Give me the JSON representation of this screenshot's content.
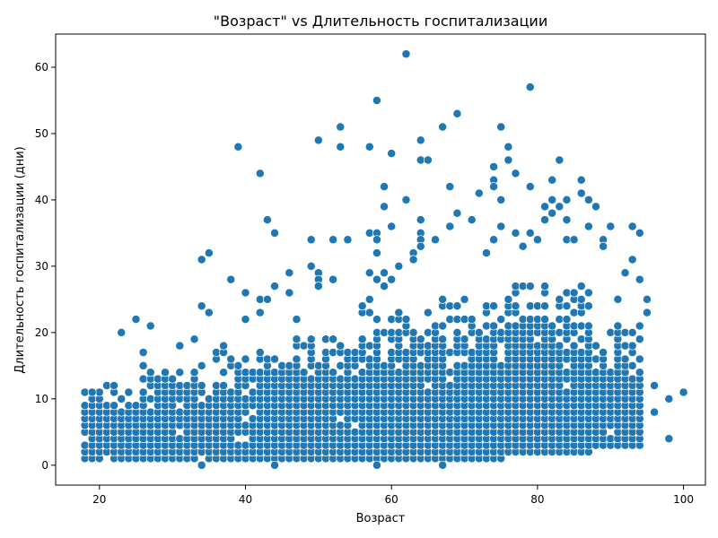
{
  "chart_data": {
    "type": "scatter",
    "title": "\"Возраст\" vs Длительность госпитализации",
    "xlabel": "Возраст",
    "ylabel": "Длительность госпитализации (дни)",
    "xlim": [
      14,
      103
    ],
    "ylim": [
      -3,
      65
    ],
    "x_ticks": [
      20,
      40,
      60,
      80,
      100
    ],
    "y_ticks": [
      0,
      10,
      20,
      30,
      40,
      50,
      60
    ],
    "grid": false,
    "legend": "none",
    "marker_color": "#1f77b4",
    "outliers": [
      {
        "x": 18,
        "y": 11
      },
      {
        "x": 19,
        "y": 11
      },
      {
        "x": 23,
        "y": 20
      },
      {
        "x": 25,
        "y": 22
      },
      {
        "x": 26,
        "y": 17
      },
      {
        "x": 27,
        "y": 21
      },
      {
        "x": 31,
        "y": 18
      },
      {
        "x": 33,
        "y": 19
      },
      {
        "x": 34,
        "y": 31
      },
      {
        "x": 34,
        "y": 24
      },
      {
        "x": 35,
        "y": 32
      },
      {
        "x": 35,
        "y": 23
      },
      {
        "x": 37,
        "y": 18
      },
      {
        "x": 38,
        "y": 28
      },
      {
        "x": 39,
        "y": 48
      },
      {
        "x": 40,
        "y": 26
      },
      {
        "x": 40,
        "y": 22
      },
      {
        "x": 42,
        "y": 44
      },
      {
        "x": 42,
        "y": 25
      },
      {
        "x": 42,
        "y": 23
      },
      {
        "x": 43,
        "y": 37
      },
      {
        "x": 43,
        "y": 25
      },
      {
        "x": 44,
        "y": 35
      },
      {
        "x": 44,
        "y": 27
      },
      {
        "x": 46,
        "y": 29
      },
      {
        "x": 46,
        "y": 26
      },
      {
        "x": 47,
        "y": 22
      },
      {
        "x": 49,
        "y": 34
      },
      {
        "x": 49,
        "y": 30
      },
      {
        "x": 50,
        "y": 49
      },
      {
        "x": 50,
        "y": 29
      },
      {
        "x": 50,
        "y": 28
      },
      {
        "x": 50,
        "y": 27
      },
      {
        "x": 52,
        "y": 34
      },
      {
        "x": 52,
        "y": 28
      },
      {
        "x": 53,
        "y": 51
      },
      {
        "x": 53,
        "y": 48
      },
      {
        "x": 54,
        "y": 34
      },
      {
        "x": 56,
        "y": 24
      },
      {
        "x": 57,
        "y": 48
      },
      {
        "x": 57,
        "y": 35
      },
      {
        "x": 57,
        "y": 29
      },
      {
        "x": 57,
        "y": 25
      },
      {
        "x": 58,
        "y": 55
      },
      {
        "x": 58,
        "y": 35
      },
      {
        "x": 58,
        "y": 34
      },
      {
        "x": 58,
        "y": 32
      },
      {
        "x": 58,
        "y": 28
      },
      {
        "x": 59,
        "y": 42
      },
      {
        "x": 59,
        "y": 39
      },
      {
        "x": 59,
        "y": 29
      },
      {
        "x": 59,
        "y": 27
      },
      {
        "x": 60,
        "y": 47
      },
      {
        "x": 60,
        "y": 36
      },
      {
        "x": 60,
        "y": 28
      },
      {
        "x": 61,
        "y": 30
      },
      {
        "x": 62,
        "y": 62
      },
      {
        "x": 62,
        "y": 40
      },
      {
        "x": 63,
        "y": 32
      },
      {
        "x": 63,
        "y": 31
      },
      {
        "x": 64,
        "y": 49
      },
      {
        "x": 64,
        "y": 46
      },
      {
        "x": 64,
        "y": 37
      },
      {
        "x": 64,
        "y": 35
      },
      {
        "x": 64,
        "y": 34
      },
      {
        "x": 64,
        "y": 33
      },
      {
        "x": 65,
        "y": 46
      },
      {
        "x": 66,
        "y": 34
      },
      {
        "x": 67,
        "y": 51
      },
      {
        "x": 68,
        "y": 42
      },
      {
        "x": 68,
        "y": 36
      },
      {
        "x": 69,
        "y": 53
      },
      {
        "x": 69,
        "y": 38
      },
      {
        "x": 71,
        "y": 37
      },
      {
        "x": 72,
        "y": 41
      },
      {
        "x": 73,
        "y": 32
      },
      {
        "x": 74,
        "y": 45
      },
      {
        "x": 74,
        "y": 43
      },
      {
        "x": 74,
        "y": 42
      },
      {
        "x": 74,
        "y": 34
      },
      {
        "x": 75,
        "y": 51
      },
      {
        "x": 75,
        "y": 40
      },
      {
        "x": 75,
        "y": 36
      },
      {
        "x": 76,
        "y": 48
      },
      {
        "x": 76,
        "y": 46
      },
      {
        "x": 77,
        "y": 44
      },
      {
        "x": 77,
        "y": 35
      },
      {
        "x": 78,
        "y": 33
      },
      {
        "x": 79,
        "y": 57
      },
      {
        "x": 79,
        "y": 42
      },
      {
        "x": 79,
        "y": 35
      },
      {
        "x": 80,
        "y": 34
      },
      {
        "x": 81,
        "y": 39
      },
      {
        "x": 81,
        "y": 37
      },
      {
        "x": 82,
        "y": 43
      },
      {
        "x": 82,
        "y": 40
      },
      {
        "x": 82,
        "y": 38
      },
      {
        "x": 83,
        "y": 46
      },
      {
        "x": 83,
        "y": 39
      },
      {
        "x": 84,
        "y": 40
      },
      {
        "x": 84,
        "y": 37
      },
      {
        "x": 84,
        "y": 34
      },
      {
        "x": 85,
        "y": 34
      },
      {
        "x": 86,
        "y": 43
      },
      {
        "x": 86,
        "y": 41
      },
      {
        "x": 87,
        "y": 40
      },
      {
        "x": 87,
        "y": 36
      },
      {
        "x": 88,
        "y": 39
      },
      {
        "x": 89,
        "y": 34
      },
      {
        "x": 89,
        "y": 33
      },
      {
        "x": 90,
        "y": 36
      },
      {
        "x": 91,
        "y": 25
      },
      {
        "x": 92,
        "y": 29
      },
      {
        "x": 93,
        "y": 36
      },
      {
        "x": 93,
        "y": 31
      },
      {
        "x": 94,
        "y": 35
      },
      {
        "x": 94,
        "y": 28
      },
      {
        "x": 95,
        "y": 25
      },
      {
        "x": 95,
        "y": 23
      },
      {
        "x": 96,
        "y": 12
      },
      {
        "x": 96,
        "y": 8
      },
      {
        "x": 98,
        "y": 10
      },
      {
        "x": 98,
        "y": 4
      },
      {
        "x": 100,
        "y": 11
      },
      {
        "x": 67,
        "y": 0
      },
      {
        "x": 58,
        "y": 0
      },
      {
        "x": 44,
        "y": 0
      },
      {
        "x": 34,
        "y": 0
      }
    ],
    "density_by_age": [
      {
        "x_from": 18,
        "x_to": 25,
        "y_from": 1,
        "y_to": 12
      },
      {
        "x_from": 26,
        "x_to": 35,
        "y_from": 1,
        "y_to": 15
      },
      {
        "x_from": 36,
        "x_to": 45,
        "y_from": 1,
        "y_to": 17
      },
      {
        "x_from": 46,
        "x_to": 55,
        "y_from": 1,
        "y_to": 19
      },
      {
        "x_from": 56,
        "x_to": 65,
        "y_from": 1,
        "y_to": 23
      },
      {
        "x_from": 66,
        "x_to": 75,
        "y_from": 1,
        "y_to": 25
      },
      {
        "x_from": 76,
        "x_to": 87,
        "y_from": 2,
        "y_to": 27
      },
      {
        "x_from": 88,
        "x_to": 94,
        "y_from": 3,
        "y_to": 21
      }
    ]
  }
}
